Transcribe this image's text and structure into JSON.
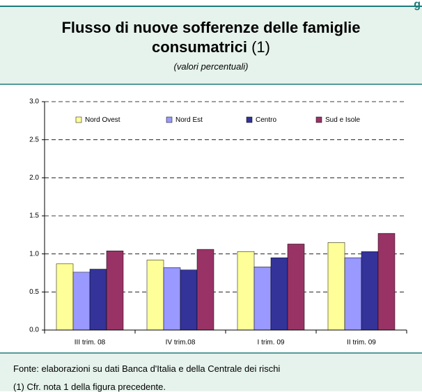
{
  "header": {
    "cut_text": "g"
  },
  "chart_data": {
    "type": "bar",
    "title": "Flusso di nuove sofferenze delle famiglie consumatrici",
    "title_note": "(1)",
    "subtitle": "valori percentuali",
    "categories": [
      "III trim. 08",
      "IV trim.08",
      "I trim. 09",
      "II trim. 09"
    ],
    "series": [
      {
        "name": "Nord Ovest",
        "color": "#ffff99",
        "values": [
          0.87,
          0.92,
          1.03,
          1.15
        ]
      },
      {
        "name": "Nord Est",
        "color": "#9999ff",
        "values": [
          0.76,
          0.82,
          0.83,
          0.95
        ]
      },
      {
        "name": "Centro",
        "color": "#333399",
        "values": [
          0.8,
          0.79,
          0.95,
          1.03
        ]
      },
      {
        "name": "Sud e Isole",
        "color": "#993366",
        "values": [
          1.04,
          1.06,
          1.13,
          1.27
        ]
      }
    ],
    "ylim": [
      0,
      3
    ],
    "yticks": [
      {
        "value": 0,
        "label": "0.0"
      },
      {
        "value": 0.5,
        "label": "0.5"
      },
      {
        "value": 1,
        "label": "1.0"
      },
      {
        "value": 1.5,
        "label": "1.5"
      },
      {
        "value": 2,
        "label": "2.0"
      },
      {
        "value": 2.5,
        "label": "2.5"
      },
      {
        "value": 3,
        "label": "3.0"
      }
    ],
    "grid": true,
    "legend": "top"
  },
  "footer": {
    "source": "Fonte: elaborazioni su dati Banca d'Italia e della Centrale dei rischi",
    "note": "(1) Cfr. nota 1 della figura precedente."
  }
}
